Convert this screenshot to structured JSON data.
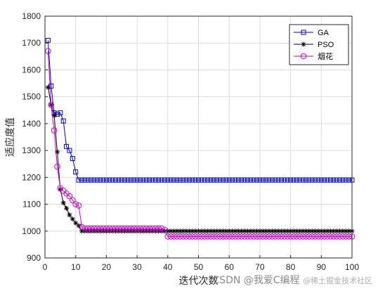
{
  "chart_data": {
    "type": "line",
    "xlabel": "迭代次数",
    "ylabel": "适应度值",
    "xlim": [
      0,
      100
    ],
    "ylim": [
      900,
      1800
    ],
    "xticks": [
      0,
      10,
      20,
      30,
      40,
      50,
      60,
      70,
      80,
      90,
      100
    ],
    "yticks": [
      900,
      1000,
      1100,
      1200,
      1300,
      1400,
      1500,
      1600,
      1700,
      1800
    ],
    "grid": true,
    "legend_position": "top-right",
    "series": [
      {
        "name": "GA",
        "color": "#0000cc",
        "marker": "square",
        "x": [
          1,
          2,
          3,
          4,
          5,
          6,
          7,
          8,
          9,
          10,
          11,
          100
        ],
        "y": [
          1710,
          1540,
          1440,
          1435,
          1440,
          1410,
          1315,
          1300,
          1270,
          1220,
          1190,
          1190
        ]
      },
      {
        "name": "PSO",
        "color": "#000000",
        "marker": "star",
        "x": [
          1,
          2,
          3,
          4,
          5,
          6,
          7,
          8,
          9,
          10,
          11,
          12,
          100
        ],
        "y": [
          1535,
          1470,
          1430,
          1295,
          1155,
          1105,
          1085,
          1060,
          1045,
          1030,
          1020,
          1000,
          1000
        ]
      },
      {
        "name": "烟花",
        "color": "#cc00cc",
        "marker": "circle",
        "x": [
          1,
          2,
          3,
          4,
          5,
          6,
          7,
          8,
          9,
          10,
          11,
          12,
          13,
          38,
          39,
          40,
          100
        ],
        "y": [
          1670,
          1470,
          1375,
          1240,
          1160,
          1150,
          1140,
          1130,
          1115,
          1100,
          1095,
          1015,
          1010,
          1010,
          1005,
          980,
          980
        ]
      }
    ]
  },
  "watermark": {
    "text": "CSDN @我爱C编程",
    "subtext": "@稀土掘金技术社区"
  }
}
